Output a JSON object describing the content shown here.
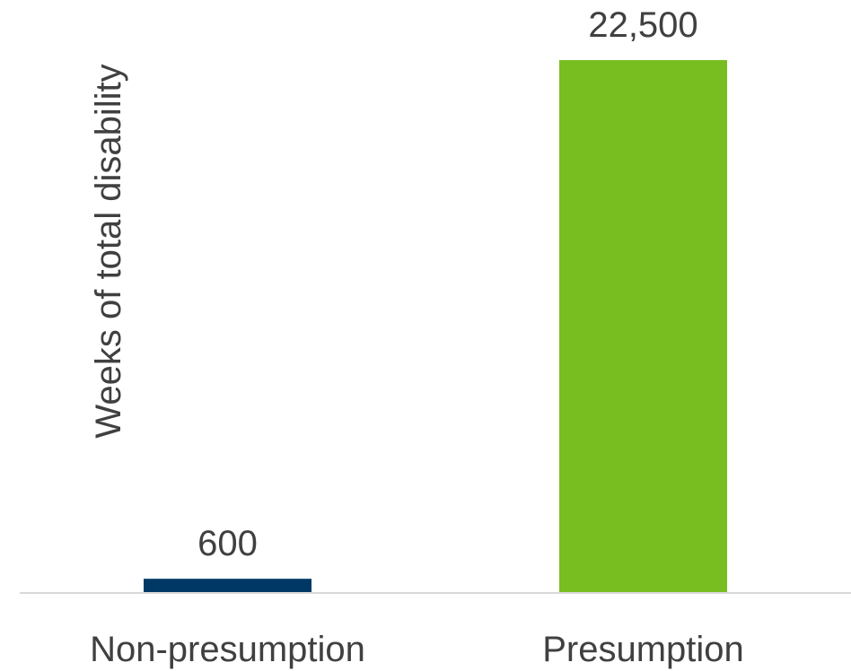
{
  "chart_data": {
    "type": "bar",
    "categories": [
      "Non-presumption",
      "Presumption"
    ],
    "values": [
      600,
      22500
    ],
    "data_labels": [
      "600",
      "22,500"
    ],
    "colors": [
      "#003865",
      "#78BE20"
    ],
    "title": "",
    "xlabel": "",
    "ylabel": "Weeks of total disability",
    "ylim": [
      0,
      22500
    ],
    "grid": false,
    "legend": "none"
  },
  "colors": {
    "baseline": "#D9D9D9",
    "text": "#404040"
  }
}
